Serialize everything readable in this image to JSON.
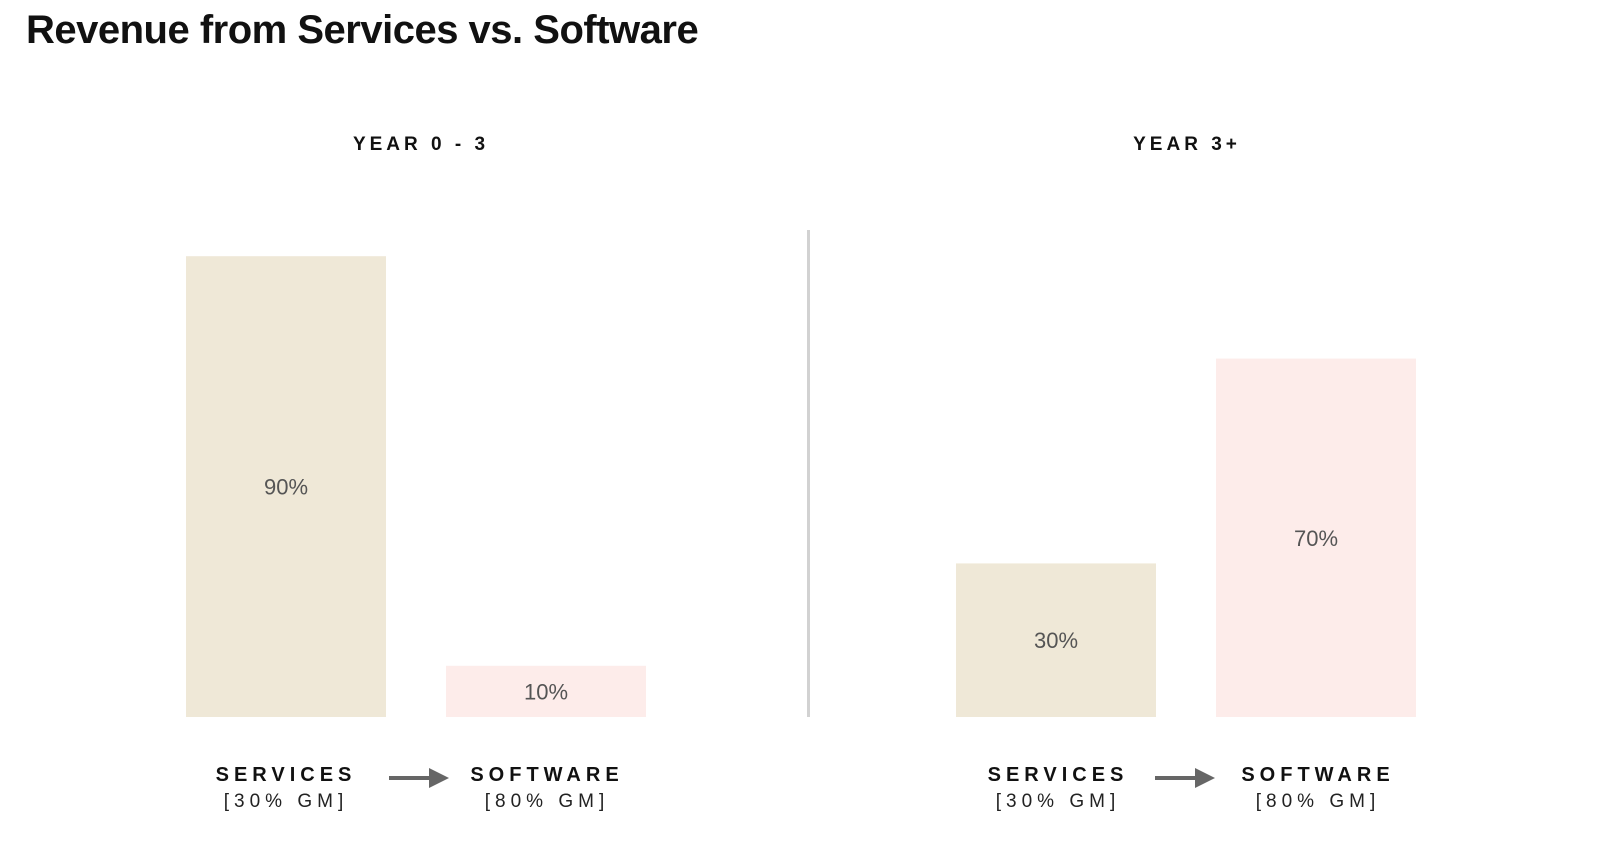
{
  "title": "Revenue from Services vs. Software",
  "colors": {
    "services": "#EFE8D7",
    "software": "#FDECEA",
    "divider": "#D2D2D2",
    "arrow": "#666666",
    "bar_label": "#555555"
  },
  "arrow_icon": "right-arrow-icon",
  "chart_data": [
    {
      "type": "bar",
      "title": "YEAR 0 - 3",
      "categories": [
        "SERVICES",
        "SOFTWARE"
      ],
      "category_sublabels": [
        "[30% GM]",
        "[80% GM]"
      ],
      "values": [
        90,
        10
      ],
      "value_labels": [
        "90%",
        "10%"
      ],
      "ylim": [
        0,
        100
      ],
      "xlabel": "",
      "ylabel": "",
      "grid": false
    },
    {
      "type": "bar",
      "title": "YEAR 3+",
      "categories": [
        "SERVICES",
        "SOFTWARE"
      ],
      "category_sublabels": [
        "[30% GM]",
        "[80% GM]"
      ],
      "values": [
        30,
        70
      ],
      "value_labels": [
        "30%",
        "70%"
      ],
      "ylim": [
        0,
        100
      ],
      "xlabel": "",
      "ylabel": "",
      "grid": false
    }
  ]
}
